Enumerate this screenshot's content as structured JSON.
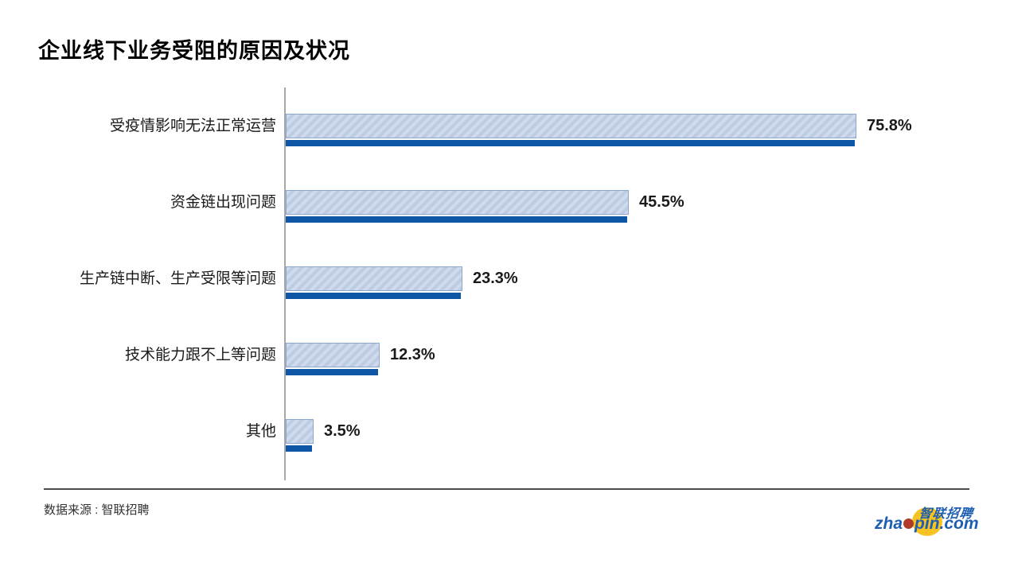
{
  "header": {
    "title": "企业线下业务受阻的原因及状况"
  },
  "chart_data": {
    "type": "bar",
    "orientation": "horizontal",
    "title": "企业线下业务受阻的原因及状况",
    "categories": [
      "受疫情影响无法正常运营",
      "资金链出现问题",
      "生产链中断、生产受限等问题",
      "技术能力跟不上等问题",
      "其他"
    ],
    "values": [
      75.8,
      45.5,
      23.3,
      12.3,
      3.5
    ],
    "value_labels": [
      "75.8%",
      "45.5%",
      "23.3%",
      "12.3%",
      "3.5%"
    ],
    "unit": "%",
    "xlim": [
      0,
      80
    ],
    "grid": false,
    "legend": false,
    "colors": {
      "bar_fill": "#cfdbec",
      "bar_hatch": "#bccce3",
      "bar_border": "#8ba7cd",
      "bar_accent": "#0f57a6",
      "axis_line": "#a8a8a8"
    }
  },
  "footer": {
    "source": "数据来源 : 智联招聘",
    "divider_color": "#4d4d4d"
  },
  "logo": {
    "cn_text": "智联招聘",
    "en_prefix": "zha",
    "en_suffix": "pin.com",
    "colors": {
      "blue": "#1e5eb2",
      "yellow": "#f7c320",
      "red": "#b03b2a"
    }
  }
}
